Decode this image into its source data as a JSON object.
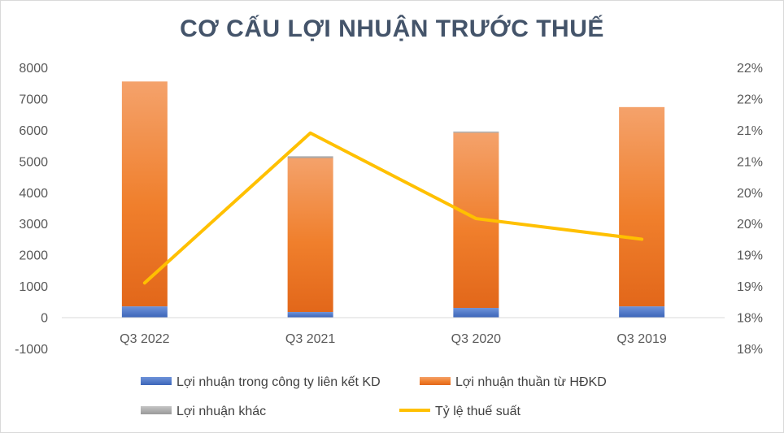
{
  "chart_data": {
    "type": "bar",
    "title": "CƠ CẤU LỢI NHUẬN TRƯỚC THUẾ",
    "categories": [
      "Q3 2022",
      "Q3 2021",
      "Q3 2020",
      "Q3 2019"
    ],
    "series": [
      {
        "name": "Lợi nhuận trong công ty liên kết KD",
        "type": "bar",
        "stack": "total",
        "color": "#4472c4",
        "values": [
          350,
          170,
          300,
          350
        ]
      },
      {
        "name": "Lợi nhuận thuần từ HĐKD",
        "type": "bar",
        "stack": "total",
        "color": "#ed7d31",
        "values": [
          7200,
          4930,
          5610,
          6380
        ]
      },
      {
        "name": "Lợi nhuận khác",
        "type": "bar",
        "stack": "total",
        "color": "#a5a5a5",
        "values": [
          0,
          60,
          40,
          0
        ]
      },
      {
        "name": "Tỷ lệ thuế suất",
        "type": "line",
        "axis": "right",
        "color": "#ffc000",
        "values": [
          0.188,
          0.212,
          0.1983,
          0.195
        ]
      }
    ],
    "y_axis_left": {
      "min": -1000,
      "max": 8000,
      "step": 1000,
      "tick_labels": [
        "-1000",
        "0",
        "1000",
        "2000",
        "3000",
        "4000",
        "5000",
        "6000",
        "7000",
        "8000"
      ]
    },
    "y_axis_right": {
      "min": 0.1775,
      "max": 0.2225,
      "step": 0.005,
      "tick_labels": [
        "18%",
        "18%",
        "19%",
        "19%",
        "20%",
        "20%",
        "21%",
        "21%",
        "22%",
        "22%"
      ]
    },
    "grid": false,
    "legend_position": "bottom"
  }
}
